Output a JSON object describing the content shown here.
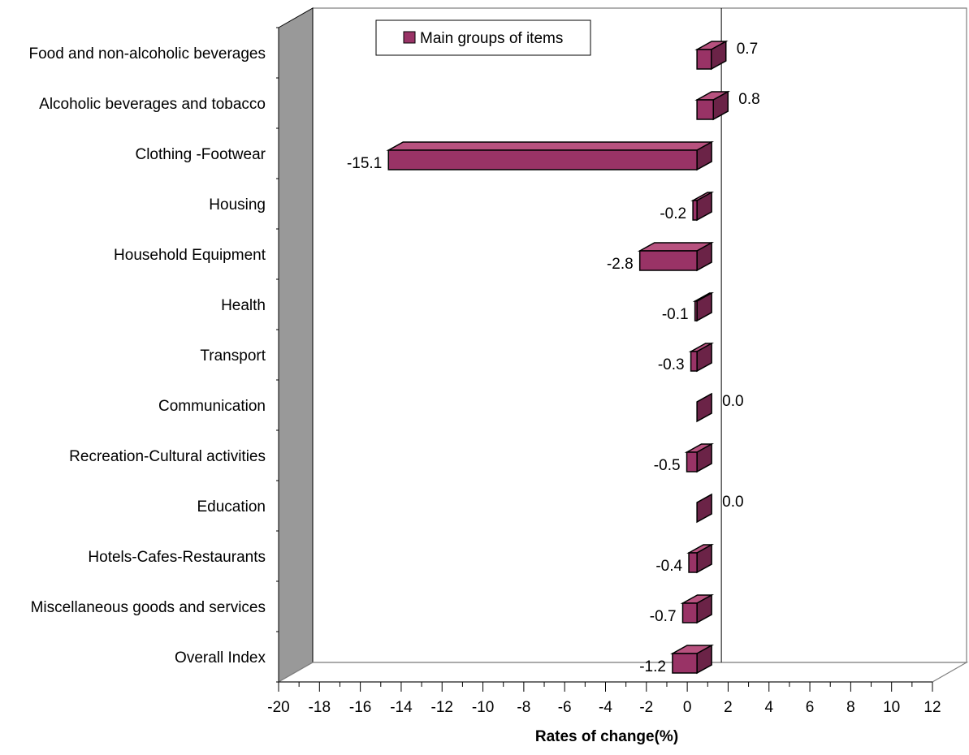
{
  "chart_data": {
    "type": "bar",
    "orientation": "horizontal",
    "three_d": true,
    "categories": [
      "Food and non-alcoholic beverages",
      "Alcoholic beverages and tobacco",
      "Clothing -Footwear",
      "Housing",
      "Household Equipment",
      "Health",
      "Transport",
      "Communication",
      "Recreation-Cultural activities",
      "Education",
      "Hotels-Cafes-Restaurants",
      "Miscellaneous goods and services",
      "Overall Index"
    ],
    "series": [
      {
        "name": "Main groups of items",
        "values": [
          0.7,
          0.8,
          -15.1,
          -0.2,
          -2.8,
          -0.1,
          -0.3,
          0.0,
          -0.5,
          0.0,
          -0.4,
          -0.7,
          -1.2
        ],
        "data_labels": [
          "0.7",
          "0.8",
          "-15.1",
          "-0.2",
          "-2.8",
          "-0.1",
          "-0.3",
          "0.0",
          "-0.5",
          "0.0",
          "-0.4",
          "-0.7",
          "-1.2"
        ]
      }
    ],
    "xlabel": "Rates of change(%)",
    "xlim": [
      -20,
      12
    ],
    "xticks": [
      "-20",
      "-18",
      "-16",
      "-14",
      "-12",
      "-10",
      "-8",
      "-6",
      "-4",
      "-2",
      "0",
      "2",
      "4",
      "6",
      "8",
      "10",
      "12"
    ],
    "legend_position": "top-left",
    "grid": false,
    "colors": {
      "bar_front": "#993366",
      "bar_top": "#b8527f",
      "bar_side": "#6b2347",
      "left_wall": "#999999",
      "floor": "#ffffff"
    }
  }
}
